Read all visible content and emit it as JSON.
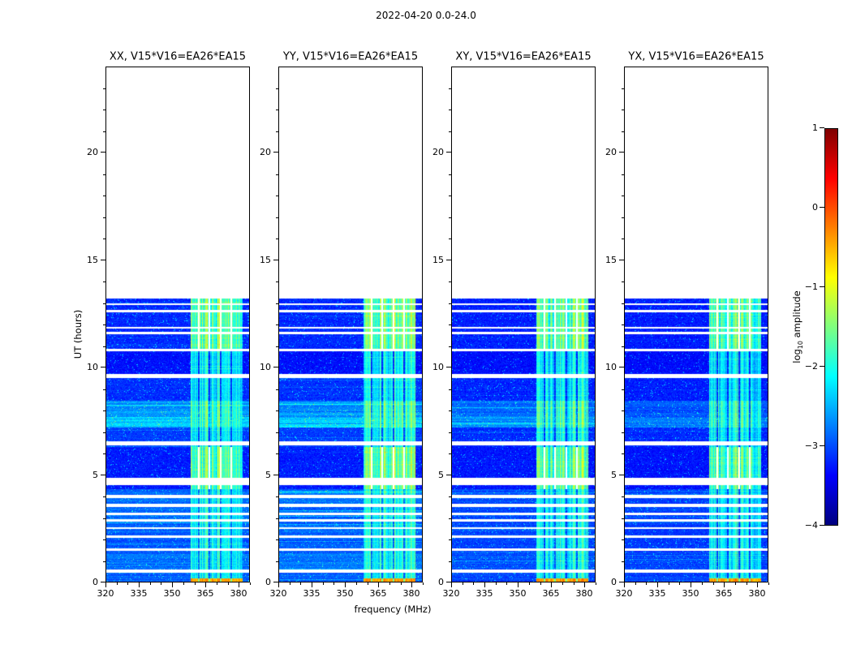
{
  "chart_data": {
    "type": "heatmap",
    "title": "2022-04-20 0.0-24.0",
    "xlabel": "frequency (MHz)",
    "ylabel": "UT (hours)",
    "x_range": [
      320,
      385
    ],
    "x_ticks": [
      320,
      335,
      350,
      365,
      380
    ],
    "x_minor_step": 5,
    "y_range": [
      0,
      24
    ],
    "y_ticks": [
      0,
      5,
      10,
      15,
      20
    ],
    "y_minor_step": 1,
    "panels": [
      {
        "title": "XX, V15*V16=EA26*EA15",
        "bg_contrast": 1.0,
        "rfi_contrast": 1.0
      },
      {
        "title": "YY, V15*V16=EA26*EA15",
        "bg_contrast": 1.0,
        "rfi_contrast": 1.03
      },
      {
        "title": "XY, V15*V16=EA26*EA15",
        "bg_contrast": 0.72,
        "rfi_contrast": 0.95
      },
      {
        "title": "YX, V15*V16=EA26*EA15",
        "bg_contrast": 0.58,
        "rfi_contrast": 0.92
      }
    ],
    "colorbar": {
      "label_parts": [
        "log",
        "10",
        " amplitude"
      ],
      "range": [
        -4,
        1
      ],
      "ticks": [
        1,
        0,
        -1,
        -2,
        -3,
        -4
      ],
      "tick_labels": [
        "1",
        "0",
        "−1",
        "−2",
        "−3",
        "−4"
      ],
      "colormap": "jet",
      "colormap_stops": [
        [
          "#00007f",
          0
        ],
        [
          "#0000ff",
          0.125
        ],
        [
          "#00ffff",
          0.375
        ],
        [
          "#7fff7f",
          0.5
        ],
        [
          "#ffff00",
          0.625
        ],
        [
          "#ff0000",
          0.875
        ],
        [
          "#7f0000",
          1
        ]
      ]
    },
    "data_time_range_hours": [
      0.0,
      13.2
    ],
    "noise_floor": -3.45,
    "rfi_band_mhz": [
      358.5,
      382.0
    ],
    "bottom_burst": {
      "hours": [
        0.0,
        0.17
      ],
      "level": -0.55
    },
    "gaps_hours": [
      [
        0.42,
        0.58
      ],
      [
        1.45,
        1.55
      ],
      [
        2.05,
        2.15
      ],
      [
        2.45,
        2.55
      ],
      [
        2.82,
        2.92
      ],
      [
        3.12,
        3.22
      ],
      [
        3.5,
        3.65
      ],
      [
        3.9,
        4.05
      ],
      [
        4.5,
        4.85
      ],
      [
        6.35,
        6.55
      ],
      [
        9.5,
        9.68
      ],
      [
        10.75,
        10.85
      ],
      [
        11.55,
        11.65
      ],
      [
        11.8,
        11.9
      ],
      [
        12.55,
        12.7
      ],
      [
        12.92,
        12.98
      ]
    ],
    "background_profile": [
      {
        "hours": [
          0.0,
          0.6
        ],
        "level": 0.45
      },
      {
        "hours": [
          0.6,
          1.3
        ],
        "level": 0.55
      },
      {
        "hours": [
          1.3,
          2.3
        ],
        "level": 0.42
      },
      {
        "hours": [
          2.3,
          4.3
        ],
        "level": 0.5
      },
      {
        "hours": [
          4.3,
          6.3
        ],
        "level": 0.12
      },
      {
        "hours": [
          6.3,
          7.2
        ],
        "level": 0.28
      },
      {
        "hours": [
          7.2,
          7.7
        ],
        "level": 0.95
      },
      {
        "hours": [
          7.7,
          8.45
        ],
        "level": 0.7
      },
      {
        "hours": [
          8.45,
          9.5
        ],
        "level": 0.22
      },
      {
        "hours": [
          9.5,
          10.75
        ],
        "level": 0.05
      },
      {
        "hours": [
          10.75,
          13.2
        ],
        "level": 0.18
      }
    ],
    "rfi_profile": [
      {
        "hours": [
          0.17,
          4.3
        ],
        "strength": 0.62
      },
      {
        "hours": [
          4.3,
          6.3
        ],
        "strength": 0.85
      },
      {
        "hours": [
          6.3,
          7.2
        ],
        "strength": 0.6
      },
      {
        "hours": [
          7.2,
          8.45
        ],
        "strength": 0.78
      },
      {
        "hours": [
          8.45,
          10.75
        ],
        "strength": 0.58
      },
      {
        "hours": [
          10.75,
          13.2
        ],
        "strength": 0.86
      }
    ],
    "rfi_separator_channels_mhz": [
      362,
      367,
      372,
      377
    ]
  }
}
